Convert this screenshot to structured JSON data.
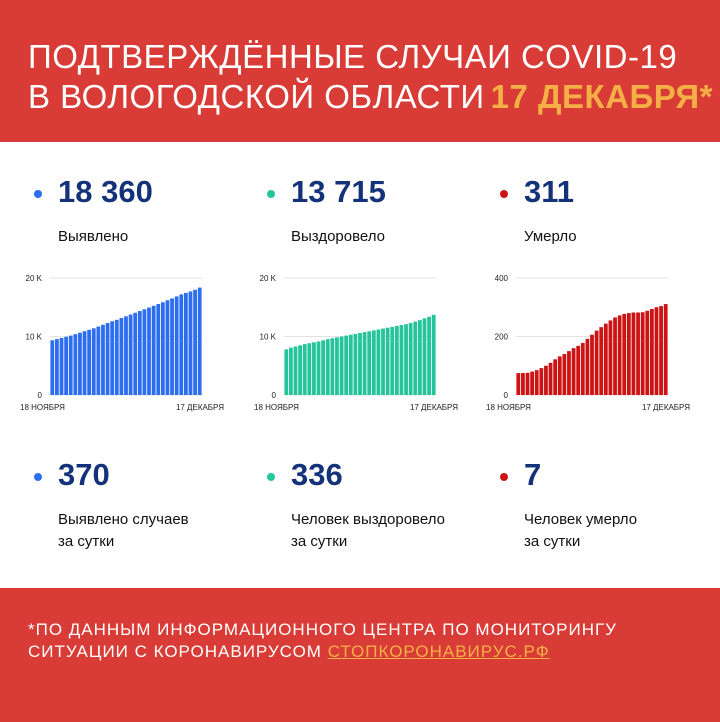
{
  "header": {
    "line1": "ПОДТВЕРЖДЁННЫЕ СЛУЧАИ COVID-19",
    "line2": "В ВОЛОГОДСКОЙ ОБЛАСТИ",
    "date": "17 ДЕКАБРЯ*"
  },
  "colors": {
    "background": "#d93c36",
    "accent": "#f4b046",
    "number": "#14327a",
    "detected": "#2d6df0",
    "recovered": "#25c49a",
    "died": "#cc1414"
  },
  "totals": [
    {
      "value": "18 360",
      "label": "Выявлено",
      "color": "#2d6df0"
    },
    {
      "value": "13 715",
      "label": "Выздоровело",
      "color": "#25c49a"
    },
    {
      "value": "311",
      "label": "Умерло",
      "color": "#cc1414"
    }
  ],
  "daily": [
    {
      "value": "370",
      "label1": "Выявлено случаев",
      "label2": "за сутки",
      "color": "#2d6df0"
    },
    {
      "value": "336",
      "label1": "Человек выздоровело",
      "label2": "за сутки",
      "color": "#25c49a"
    },
    {
      "value": "7",
      "label1": "Человек умерло",
      "label2": "за сутки",
      "color": "#cc1414"
    }
  ],
  "footer": {
    "line1": "*ПО ДАННЫМ ИНФОРМАЦИОННОГО ЦЕНТРА ПО МОНИТОРИНГУ",
    "line2": "СИТУАЦИИ С КОРОНАВИРУСОМ",
    "link": "СТОПКОРОНАВИРУС.РФ"
  },
  "chart_data": [
    {
      "type": "bar",
      "x_start_label": "18 НОЯБРЯ",
      "x_end_label": "17 ДЕКАБРЯ",
      "ylim": [
        0,
        20000
      ],
      "yticks": [
        0,
        10000,
        20000
      ],
      "ytick_labels": [
        "0",
        "10 K",
        "20 K"
      ],
      "color": "#2d6df0",
      "values": [
        9350,
        9550,
        9750,
        9950,
        10150,
        10400,
        10650,
        10900,
        11150,
        11400,
        11700,
        12000,
        12300,
        12600,
        12850,
        13150,
        13450,
        13750,
        14050,
        14350,
        14650,
        14950,
        15250,
        15550,
        15850,
        16200,
        16500,
        16850,
        17200,
        17450,
        17700,
        17990,
        18360
      ]
    },
    {
      "type": "bar",
      "x_start_label": "18 НОЯБРЯ",
      "x_end_label": "17 ДЕКАБРЯ",
      "ylim": [
        0,
        20000
      ],
      "yticks": [
        0,
        10000,
        20000
      ],
      "ytick_labels": [
        "0",
        "10 K",
        "20 K"
      ],
      "color": "#25c49a",
      "values": [
        7800,
        8100,
        8300,
        8500,
        8700,
        8850,
        9000,
        9150,
        9350,
        9550,
        9700,
        9850,
        10000,
        10150,
        10300,
        10450,
        10600,
        10750,
        10900,
        11050,
        11200,
        11350,
        11500,
        11650,
        11800,
        11950,
        12100,
        12300,
        12550,
        12800,
        13100,
        13379,
        13715
      ]
    },
    {
      "type": "bar",
      "x_start_label": "18 НОЯБРЯ",
      "x_end_label": "17 ДЕКАБРЯ",
      "ylim": [
        0,
        400
      ],
      "yticks": [
        0,
        200,
        400
      ],
      "ytick_labels": [
        "0",
        "200",
        "400"
      ],
      "color": "#cc1414",
      "values": [
        75,
        75,
        76,
        80,
        85,
        92,
        100,
        110,
        122,
        132,
        140,
        150,
        160,
        168,
        178,
        192,
        206,
        220,
        232,
        244,
        255,
        265,
        272,
        277,
        280,
        282,
        282,
        283,
        288,
        294,
        300,
        304,
        311
      ]
    }
  ]
}
